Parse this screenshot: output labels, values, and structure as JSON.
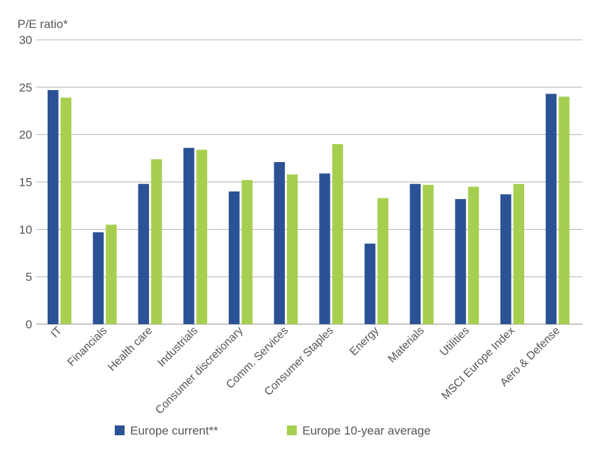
{
  "chart_data": {
    "type": "bar",
    "ylabel": "P/E ratio*",
    "xlabel": "",
    "ylim": [
      0,
      30
    ],
    "yticks": [
      0,
      5,
      10,
      15,
      20,
      25,
      30
    ],
    "grid": true,
    "legend_position": "bottom",
    "categories": [
      "IT",
      "Financials",
      "Health care",
      "Industrials",
      "Consumer discretionary",
      "Comm. Services",
      "Consumer Staples",
      "Energy",
      "Materials",
      "Utilities",
      "MSCI Europe Index",
      "Aero & Defense"
    ],
    "series": [
      {
        "name": "Europe current**",
        "color": "#2b5294",
        "values": [
          24.7,
          9.7,
          14.8,
          18.6,
          14.0,
          17.1,
          15.9,
          8.5,
          14.8,
          13.2,
          13.7,
          24.3
        ]
      },
      {
        "name": "Europe 10-year average",
        "color": "#a6cf4f",
        "values": [
          23.9,
          10.5,
          17.4,
          18.4,
          15.2,
          15.8,
          19.0,
          13.3,
          14.7,
          14.5,
          14.8,
          24.0
        ]
      }
    ]
  },
  "colors": {
    "grid": "#b0b0b0",
    "axis": "#888888",
    "text": "#555555"
  }
}
